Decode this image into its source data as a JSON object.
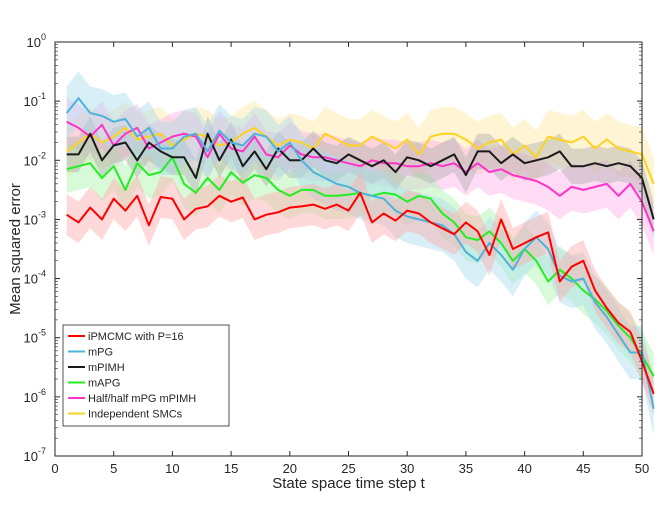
{
  "chart_data": {
    "type": "line",
    "title": "",
    "xlabel": "State space time step t",
    "ylabel": "Mean squared error",
    "xlim": [
      0,
      50
    ],
    "ylim_log10": [
      -7,
      0
    ],
    "yscale": "log",
    "grid": false,
    "legend_position": "bottom-left",
    "x_ticks": [
      0,
      5,
      10,
      15,
      20,
      25,
      30,
      35,
      40,
      45,
      50
    ],
    "y_ticks": [
      {
        "base": "10",
        "exp": "-7"
      },
      {
        "base": "10",
        "exp": "-6"
      },
      {
        "base": "10",
        "exp": "-5"
      },
      {
        "base": "10",
        "exp": "-4"
      },
      {
        "base": "10",
        "exp": "-3"
      },
      {
        "base": "10",
        "exp": "-2"
      },
      {
        "base": "10",
        "exp": "-1"
      },
      {
        "base": "10",
        "exp": "0"
      }
    ],
    "series": [
      {
        "name": "iPMCMC with P=16",
        "color": "#ff0000",
        "band_color": "#ffaaaa",
        "band_width": 0.35,
        "log10_values": [
          -2.92,
          -3.05,
          -2.8,
          -3.0,
          -2.65,
          -2.85,
          -2.6,
          -3.1,
          -2.62,
          -2.65,
          -3.0,
          -2.82,
          -2.78,
          -2.6,
          -2.7,
          -2.63,
          -3.0,
          -2.92,
          -2.88,
          -2.8,
          -2.78,
          -2.75,
          -2.82,
          -2.75,
          -2.85,
          -2.55,
          -3.05,
          -2.9,
          -3.02,
          -2.85,
          -2.9,
          -3.05,
          -3.15,
          -3.25,
          -3.05,
          -3.2,
          -3.6,
          -3.0,
          -3.5,
          -3.4,
          -3.3,
          -3.22,
          -4.05,
          -3.8,
          -3.7,
          -4.2,
          -4.5,
          -4.75,
          -4.9,
          -5.4,
          -5.95
        ]
      },
      {
        "name": "mPG",
        "color": "#4db3dc",
        "band_color": "#a9dcef",
        "band_width": 0.45,
        "log10_values": [
          -1.2,
          -0.95,
          -1.2,
          -1.25,
          -1.35,
          -1.3,
          -1.6,
          -1.45,
          -1.8,
          -1.8,
          -1.6,
          -1.55,
          -1.85,
          -1.5,
          -1.7,
          -1.75,
          -1.55,
          -1.6,
          -1.85,
          -1.7,
          -2.0,
          -2.2,
          -2.3,
          -2.4,
          -2.45,
          -2.55,
          -2.6,
          -2.65,
          -2.85,
          -2.95,
          -3.0,
          -3.05,
          -3.1,
          -3.25,
          -3.55,
          -3.7,
          -3.4,
          -3.6,
          -3.85,
          -3.5,
          -3.3,
          -3.5,
          -3.95,
          -4.05,
          -4.0,
          -4.4,
          -4.65,
          -4.95,
          -5.25,
          -5.25,
          -6.2
        ]
      },
      {
        "name": "mPIMH",
        "color": "#1a1a1a",
        "band_color": "#b0b0b0",
        "band_width": 0.3,
        "log10_values": [
          -1.9,
          -1.9,
          -1.55,
          -2.0,
          -1.75,
          -1.7,
          -2.0,
          -1.7,
          -1.85,
          -1.95,
          -1.95,
          -2.3,
          -1.55,
          -2.0,
          -1.65,
          -2.1,
          -1.85,
          -2.15,
          -1.8,
          -2.0,
          -2.0,
          -1.8,
          -2.0,
          -2.05,
          -1.9,
          -2.0,
          -2.1,
          -2.0,
          -2.2,
          -1.95,
          -2.0,
          -2.1,
          -2.0,
          -1.9,
          -2.25,
          -1.85,
          -1.85,
          -2.05,
          -1.9,
          -2.05,
          -2.0,
          -1.95,
          -1.85,
          -2.1,
          -2.1,
          -2.05,
          -2.1,
          -2.05,
          -2.1,
          -2.3,
          -3.0
        ]
      },
      {
        "name": "mAPG",
        "color": "#22ee22",
        "band_color": "#aaf5aa",
        "band_width": 0.4,
        "log10_values": [
          -2.15,
          -2.1,
          -2.05,
          -2.3,
          -2.1,
          -2.5,
          -2.05,
          -2.25,
          -2.2,
          -1.95,
          -2.4,
          -2.55,
          -2.3,
          -2.5,
          -2.2,
          -2.38,
          -2.25,
          -2.3,
          -2.5,
          -2.6,
          -2.5,
          -2.5,
          -2.6,
          -2.6,
          -2.58,
          -2.55,
          -2.6,
          -2.55,
          -2.58,
          -2.7,
          -2.6,
          -2.65,
          -2.9,
          -3.05,
          -3.3,
          -3.35,
          -3.2,
          -3.4,
          -3.7,
          -3.5,
          -3.7,
          -4.05,
          -3.85,
          -4.0,
          -4.2,
          -4.35,
          -4.55,
          -4.8,
          -5.0,
          -5.3,
          -5.65
        ]
      },
      {
        "name": "Half/half mPG mPIMH",
        "color": "#ff33c8",
        "band_color": "#ffb0e8",
        "band_width": 0.4,
        "log10_values": [
          -1.35,
          -1.45,
          -1.6,
          -1.4,
          -1.75,
          -1.55,
          -1.45,
          -1.8,
          -1.7,
          -1.6,
          -1.55,
          -1.6,
          -1.95,
          -1.55,
          -1.8,
          -1.85,
          -1.6,
          -1.9,
          -1.95,
          -1.75,
          -1.9,
          -1.95,
          -1.95,
          -2.0,
          -2.05,
          -2.1,
          -2.0,
          -2.05,
          -2.05,
          -2.1,
          -2.1,
          -2.05,
          -2.1,
          -2.05,
          -2.2,
          -2.05,
          -2.2,
          -2.15,
          -2.25,
          -2.3,
          -2.35,
          -2.45,
          -2.6,
          -2.45,
          -2.5,
          -2.45,
          -2.4,
          -2.6,
          -2.4,
          -2.7,
          -3.2
        ]
      },
      {
        "name": "Independent SMCs",
        "color": "#ffd21f",
        "band_color": "#ffe9a0",
        "band_width": 0.45,
        "log10_values": [
          -1.85,
          -1.7,
          -1.55,
          -1.7,
          -1.6,
          -1.45,
          -1.65,
          -1.6,
          -1.55,
          -1.75,
          -1.65,
          -1.55,
          -1.6,
          -1.75,
          -1.7,
          -1.55,
          -1.45,
          -1.6,
          -1.75,
          -1.65,
          -1.7,
          -1.8,
          -1.55,
          -1.65,
          -1.75,
          -1.75,
          -1.6,
          -1.7,
          -1.8,
          -1.65,
          -1.9,
          -1.6,
          -1.55,
          -1.55,
          -1.65,
          -1.8,
          -1.7,
          -1.65,
          -1.9,
          -1.75,
          -1.95,
          -1.6,
          -1.65,
          -1.7,
          -1.6,
          -1.8,
          -1.65,
          -1.8,
          -1.85,
          -1.9,
          -2.4
        ]
      }
    ]
  }
}
